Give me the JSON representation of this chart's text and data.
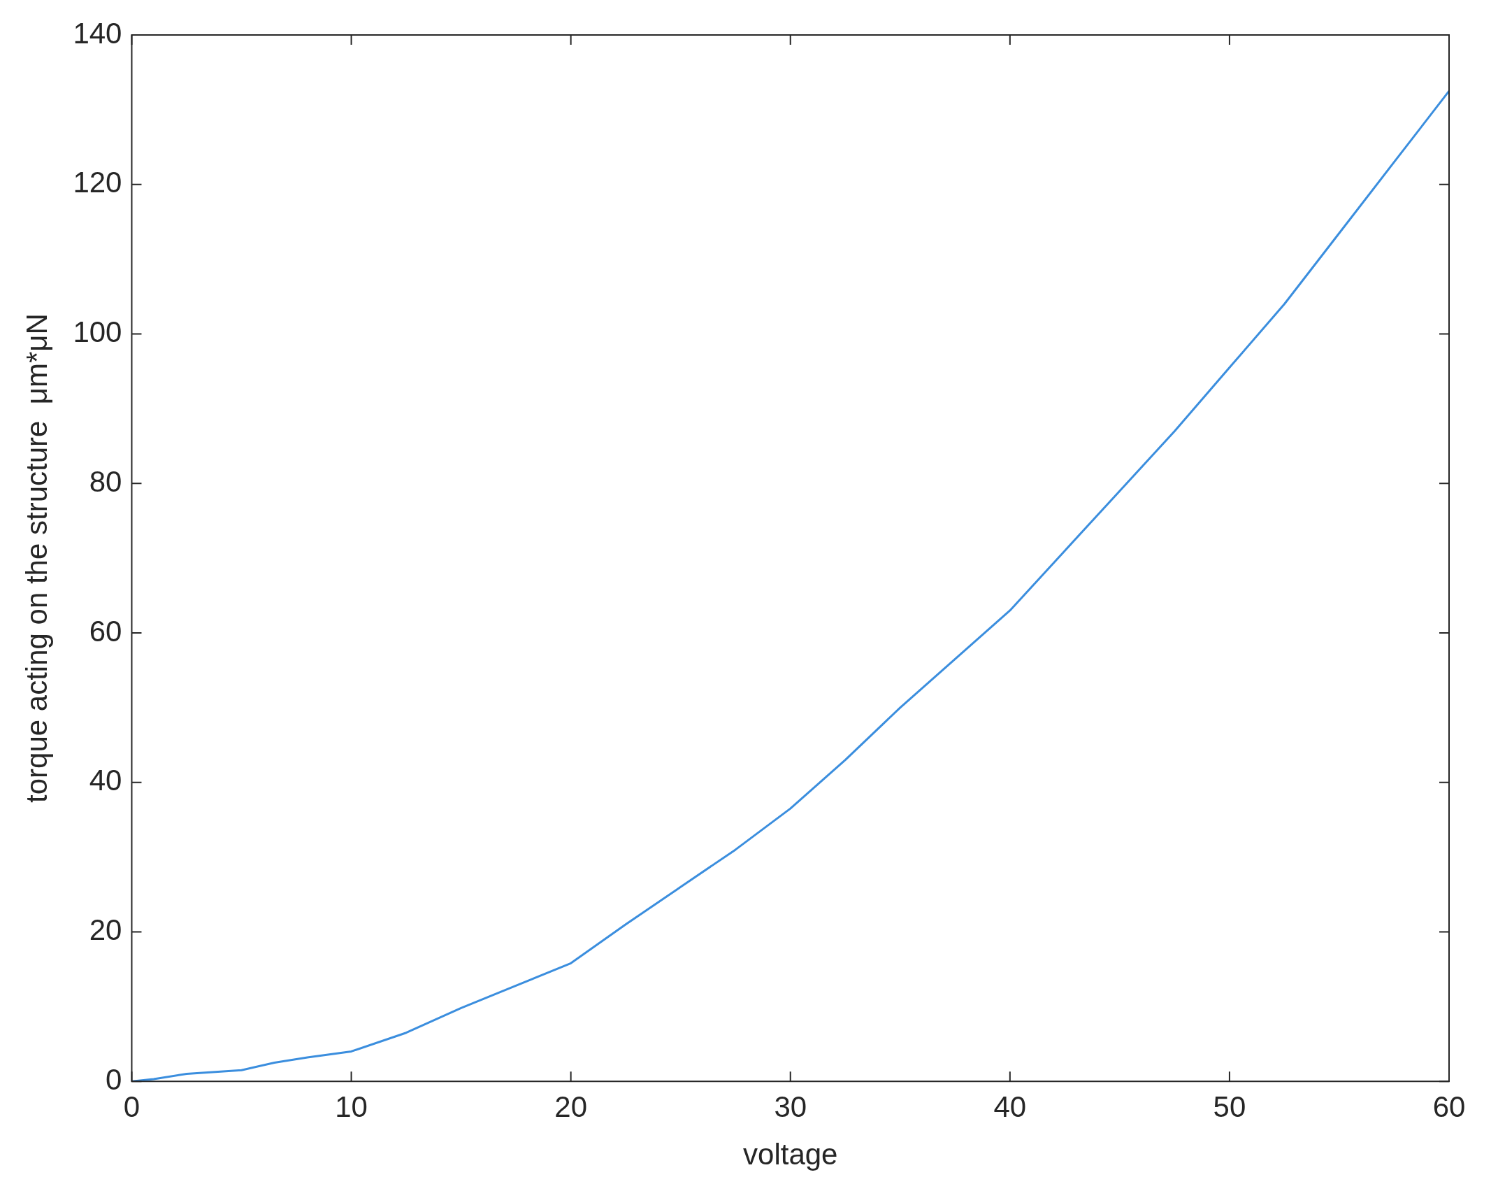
{
  "chart_data": {
    "type": "line",
    "xlabel": "voltage",
    "ylabel": "torque acting on the structure  μm*μN",
    "x": [
      0,
      1,
      2.5,
      5,
      6.5,
      8,
      10,
      12.5,
      15,
      17.5,
      20,
      22.5,
      25,
      27.5,
      30,
      32.5,
      35,
      37.5,
      40,
      42.5,
      45,
      47.5,
      50,
      52.5,
      55,
      57.5,
      60
    ],
    "series": [
      {
        "color": "#3b8ede",
        "values": [
          0,
          0.3,
          1,
          1.5,
          2.5,
          3.2,
          4,
          6.5,
          9.8,
          12.8,
          15.8,
          21,
          26,
          31,
          36.5,
          43,
          50,
          56.5,
          63,
          71,
          79,
          87,
          95.5,
          104,
          113.5,
          123,
          132.5
        ]
      }
    ],
    "xlim": [
      0,
      60
    ],
    "xticks": [
      0,
      10,
      20,
      30,
      40,
      50,
      60
    ],
    "ylim": [
      0,
      140
    ],
    "yticks": [
      0,
      20,
      40,
      60,
      80,
      100,
      120,
      140
    ],
    "grid": false,
    "legend": false,
    "marker": "none",
    "line_style": "solid"
  }
}
